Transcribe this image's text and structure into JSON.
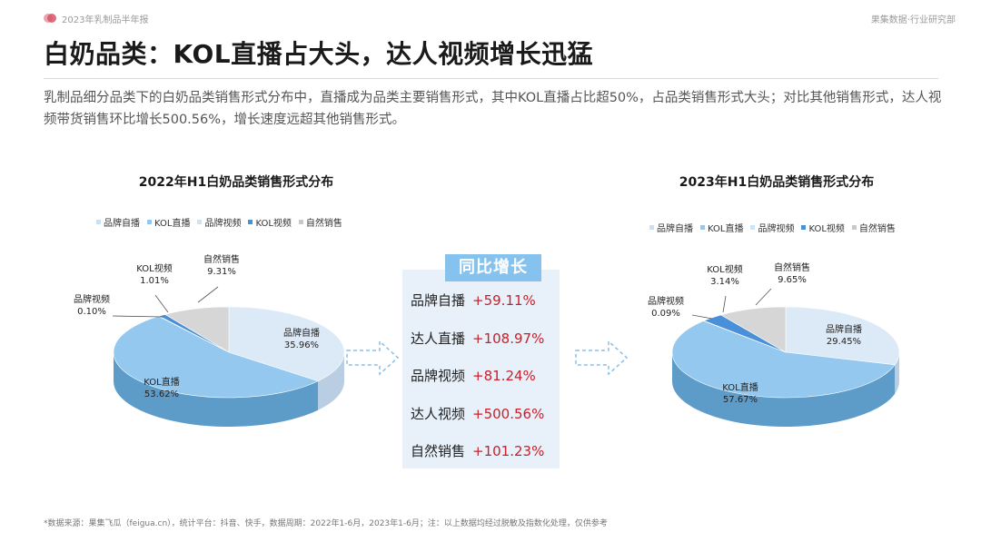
{
  "header": {
    "report_tag": "2023年乳制品半年报",
    "org_tag": "果集数据·行业研究部"
  },
  "page_title": "白奶品类：KOL直播占大头，达人视频增长迅猛",
  "intro": "乳制品细分品类下的白奶品类销售形式分布中，直播成为品类主要销售形式，其中KOL直播占比超50%，占品类销售形式大头；对比其他销售形式，达人视频带货销售环比增长500.56%，增长速度远超其他销售形式。",
  "colors": {
    "brand_live": "#dce9f7",
    "kol_live": "#94c8ee",
    "brand_video": "#cfe3f5",
    "kol_video": "#4a90d9",
    "natural": "#d6d6d6",
    "growth_red": "#c8202a",
    "growth_header": "#85c3ee"
  },
  "growth_panel": {
    "header": "同比增长",
    "rows": [
      {
        "label": "品牌自播",
        "value": "+59.11%"
      },
      {
        "label": "达人直播",
        "value": "+108.97%"
      },
      {
        "label": "品牌视频",
        "value": "+81.24%"
      },
      {
        "label": "达人视频",
        "value": "+500.56%"
      },
      {
        "label": "自然销售",
        "value": "+101.23%"
      }
    ]
  },
  "chart_data": [
    {
      "type": "pie",
      "title": "2022年H1白奶品类销售形式分布",
      "legend_position": "top",
      "categories": [
        "品牌自播",
        "KOL直播",
        "品牌视频",
        "KOL视频",
        "自然销售"
      ],
      "values": [
        35.96,
        53.62,
        0.1,
        1.01,
        9.31
      ],
      "value_labels": [
        "35.96%",
        "53.62%",
        "0.10%",
        "1.01%",
        "9.31%"
      ]
    },
    {
      "type": "pie",
      "title": "2023年H1白奶品类销售形式分布",
      "legend_position": "top",
      "categories": [
        "品牌自播",
        "KOL直播",
        "品牌视频",
        "KOL视频",
        "自然销售"
      ],
      "values": [
        29.45,
        57.67,
        0.09,
        3.14,
        9.65
      ],
      "value_labels": [
        "29.45%",
        "57.67%",
        "0.09%",
        "3.14%",
        "9.65%"
      ]
    }
  ],
  "footnote": "*数据来源：果集飞瓜（feigua.cn），统计平台：抖音、快手，数据周期：2022年1-6月，2023年1-6月；注：以上数据均经过脱敏及指数化处理，仅供参考"
}
